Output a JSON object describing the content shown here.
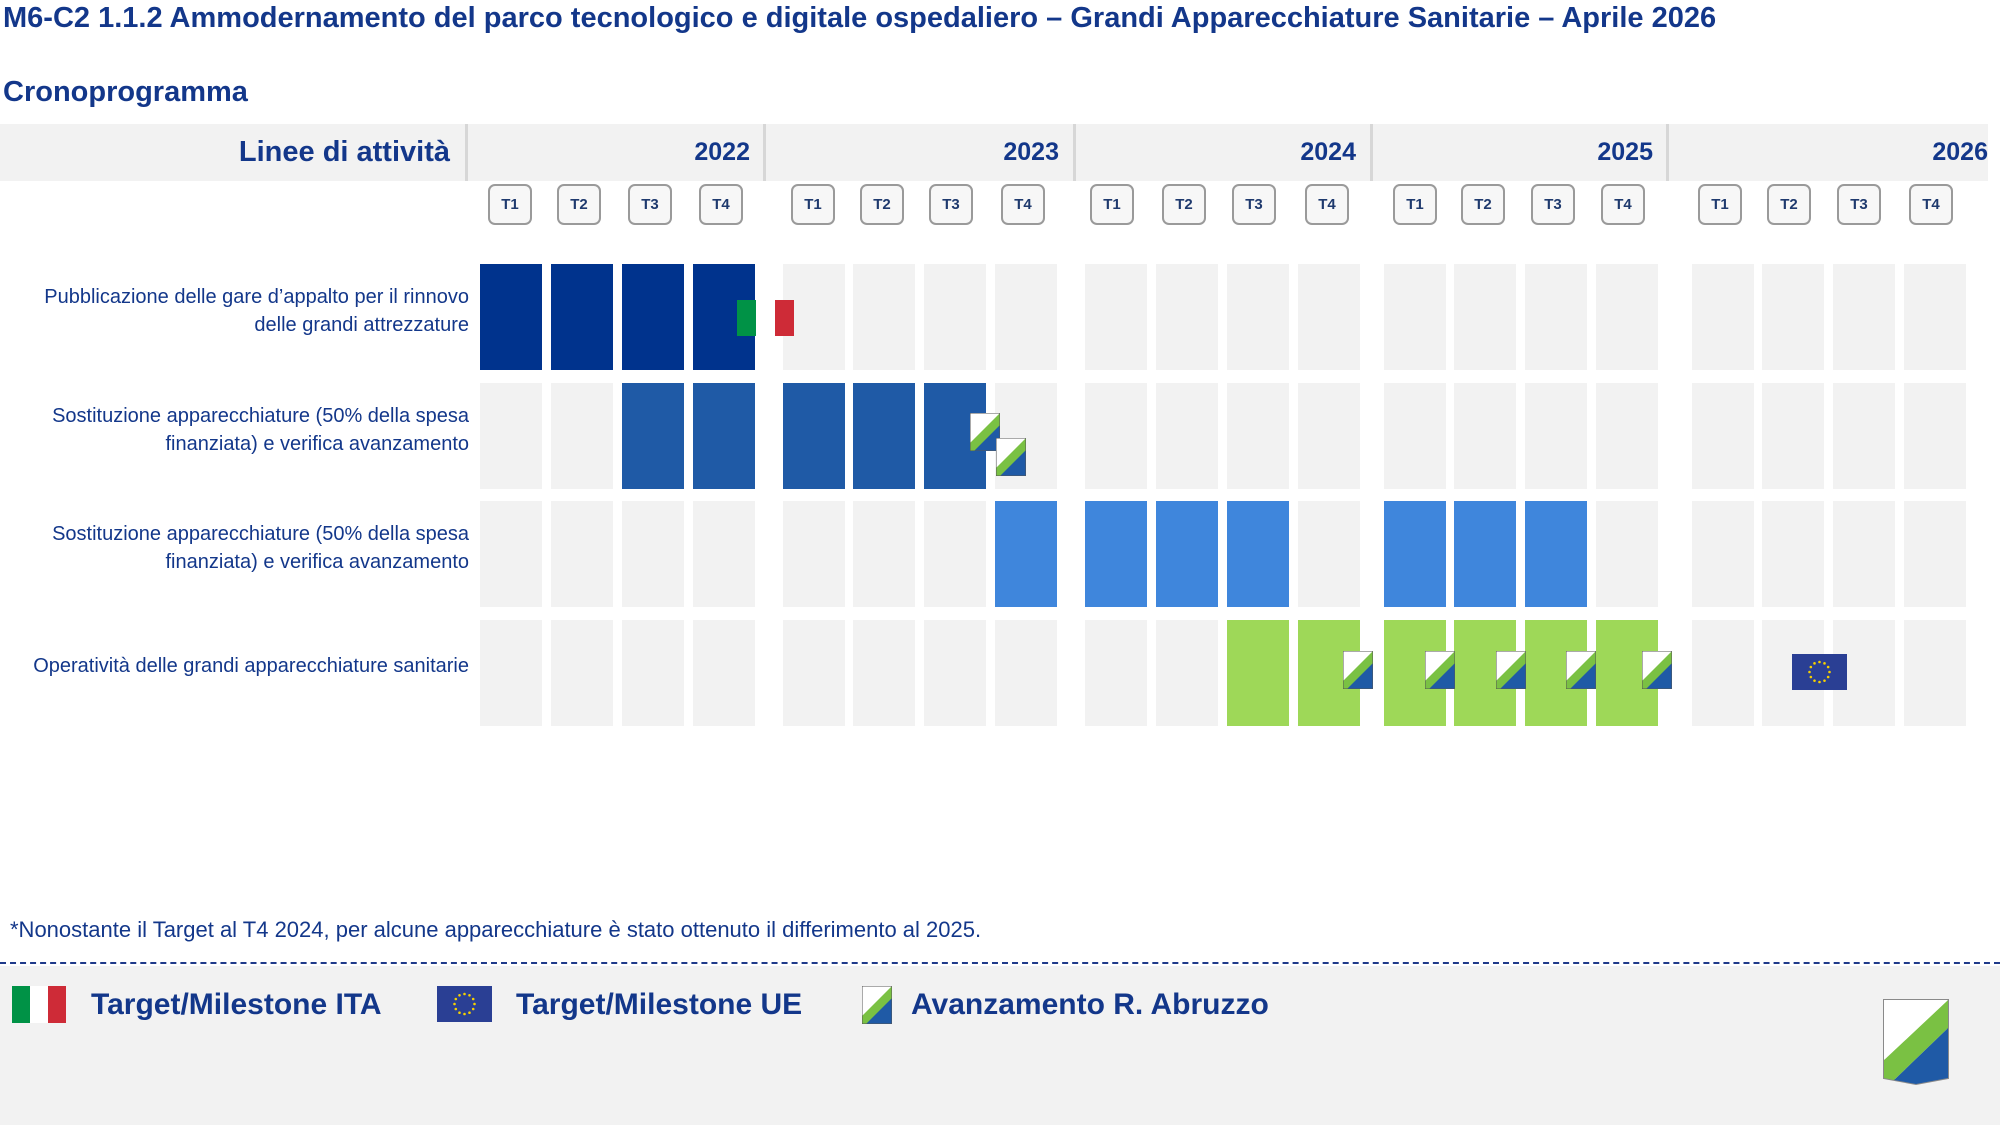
{
  "title": "M6-C2 1.1.2 Ammodernamento del parco tecnologico e digitale ospedaliero – Grandi Apparecchiature Sanitarie – Aprile 2026",
  "subtitle": "Cronoprogramma",
  "header_label": "Linee di attività",
  "years": [
    "2022",
    "2023",
    "2024",
    "2025",
    "2026"
  ],
  "quarters": [
    "T1",
    "T2",
    "T3",
    "T4"
  ],
  "rows": [
    {
      "label": "Pubblicazione delle gare d’appalto per il rinnovo delle grandi attrezzature",
      "color": "#00338d",
      "filled": [
        0,
        1,
        2,
        3
      ]
    },
    {
      "label": "Sostituzione apparecchiature (50% della spesa finanziata) e verifica avanzamento",
      "color": "#1f5aa6",
      "filled": [
        2,
        3,
        4,
        5,
        6
      ]
    },
    {
      "label": "Sostituzione apparecchiature (50% della spesa finanziata) e verifica avanzamento",
      "color": "#3f86dc",
      "filled": [
        7,
        8,
        9,
        10,
        12,
        13,
        14
      ]
    },
    {
      "label": "Operatività delle grandi apparecchiature sanitarie",
      "color": "#9ed858",
      "filled": [
        10,
        11,
        12,
        13,
        14,
        15
      ]
    }
  ],
  "colors": {
    "cell_empty": "#f2f2f2",
    "italy_green": "#009246",
    "italy_red": "#ce2b37",
    "eu_blue": "#1f3a8a",
    "abruzzo_green": "#7ac143",
    "abruzzo_blue": "#1f5aa6"
  },
  "footnote": "*Nonostante il Target al T4 2024, per alcune apparecchiature è stato ottenuto il differimento al 2025.",
  "legend": {
    "ita": "Target/Milestone ITA",
    "ue": "Target/Milestone UE",
    "abruzzo": "Avanzamento R. Abruzzo"
  },
  "icons": [
    "italy-flag-icon",
    "eu-flag-icon",
    "abruzzo-flag-icon",
    "abruzzo-logo-icon"
  ]
}
